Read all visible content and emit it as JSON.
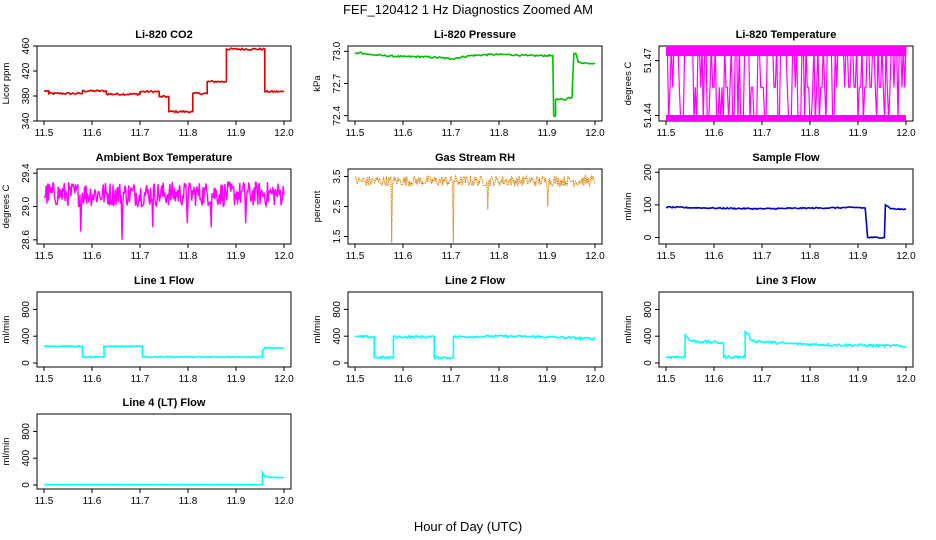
{
  "figure": {
    "title": "FEF_120412 1 Hz Diagnostics Zoomed AM",
    "xlabel": "Hour of Day (UTC)"
  },
  "chart_data": [
    {
      "type": "line",
      "title": "Li-820 CO2",
      "ylabel": "Licor ppm",
      "xlim": [
        11.5,
        12.0
      ],
      "ylim": [
        340,
        460
      ],
      "yticks": [
        340,
        380,
        420,
        460
      ],
      "xticks": [
        11.5,
        11.6,
        11.7,
        11.8,
        11.9,
        12.0
      ],
      "color": "#e00000",
      "noise": 1.6,
      "x": [
        11.5,
        11.51,
        11.51,
        11.58,
        11.58,
        11.63,
        11.63,
        11.7,
        11.7,
        11.74,
        11.74,
        11.76,
        11.76,
        11.81,
        11.81,
        11.84,
        11.84,
        11.88,
        11.88,
        11.96,
        11.96,
        12.0
      ],
      "y": [
        388,
        388,
        384,
        384,
        388,
        388,
        383,
        383,
        387,
        387,
        379,
        379,
        355,
        355,
        384,
        384,
        403,
        403,
        455,
        455,
        387,
        387
      ]
    },
    {
      "type": "line",
      "title": "Li-820 Pressure",
      "ylabel": "kPa",
      "xlim": [
        11.5,
        12.0
      ],
      "ylim": [
        72.35,
        73.05
      ],
      "yticks": [
        72.4,
        72.7,
        73.0
      ],
      "yticklabels": [
        "72.4",
        "72.7",
        "73.0"
      ],
      "extra_tick_labels": [
        "72.4",
        "72.7",
        "73.0"
      ],
      "xticks": [
        11.5,
        11.6,
        11.7,
        11.8,
        11.9,
        12.0
      ],
      "color": "#00c000",
      "noise": 0.008,
      "x": [
        11.5,
        11.51,
        11.53,
        11.56,
        11.6,
        11.64,
        11.68,
        11.7,
        11.74,
        11.78,
        11.82,
        11.86,
        11.9,
        11.912,
        11.914,
        11.918,
        11.918,
        11.94,
        11.945,
        11.952,
        11.956,
        11.96,
        11.965,
        11.98,
        12.0
      ],
      "y": [
        72.98,
        72.99,
        72.97,
        72.96,
        72.95,
        72.95,
        72.94,
        72.93,
        72.96,
        72.97,
        72.97,
        72.96,
        72.96,
        72.96,
        72.4,
        72.4,
        72.55,
        72.55,
        72.57,
        72.57,
        72.98,
        72.98,
        72.9,
        72.89,
        72.89
      ]
    },
    {
      "type": "line",
      "title": "Li-820 Temperature",
      "ylabel": "degrees C",
      "xlim": [
        11.5,
        12.0
      ],
      "ylim": [
        51.437,
        51.478
      ],
      "yticks": [
        51.44,
        51.47
      ],
      "yticklabels": [
        "51.44",
        "51.47"
      ],
      "extra_tick_labels": [
        "51.44",
        "51.47"
      ],
      "xticks": [
        11.5,
        11.6,
        11.7,
        11.8,
        11.9,
        12.0
      ],
      "color": "#ff00ff",
      "pattern": "bistable",
      "levels": [
        51.478,
        51.437
      ]
    },
    {
      "type": "line",
      "title": "Ambient Box Temperature",
      "ylabel": "degrees C",
      "xlim": [
        11.5,
        12.0
      ],
      "ylim": [
        28.55,
        29.45
      ],
      "yticks": [
        28.6,
        29.0,
        29.4
      ],
      "yticklabels": [
        "28.6",
        "29.0",
        "29.4"
      ],
      "extra_tick_labels": [
        "28.6",
        "29.0",
        "29.4"
      ],
      "xticks": [
        11.5,
        11.6,
        11.7,
        11.8,
        11.9,
        12.0
      ],
      "color": "#ff00ff",
      "pattern": "noise",
      "mean": 29.15,
      "band": 0.3,
      "spikes_down": [
        28.7,
        28.6,
        28.75,
        28.8,
        28.75,
        28.8
      ]
    },
    {
      "type": "line",
      "title": "Gas Stream RH",
      "ylabel": "percent",
      "xlim": [
        11.5,
        12.0
      ],
      "ylim": [
        1.25,
        3.75
      ],
      "yticks": [
        1.5,
        2.5,
        3.5
      ],
      "yticklabels": [
        "1.5",
        "2.5",
        "3.5"
      ],
      "extra_tick_labels": [
        "1.5",
        "2.5",
        "3.5"
      ],
      "xticks": [
        11.5,
        11.6,
        11.7,
        11.8,
        11.9,
        12.0
      ],
      "color": "#e08000",
      "pattern": "dotted-noise",
      "mean": 3.35,
      "band": 0.35,
      "spikes_down": [
        1.3,
        1.3,
        2.4,
        2.5
      ]
    },
    {
      "type": "line",
      "title": "Sample Flow",
      "ylabel": "ml/min",
      "xlim": [
        11.5,
        12.0
      ],
      "ylim": [
        -20,
        210
      ],
      "yticks": [
        0,
        100,
        200
      ],
      "xticks": [
        11.5,
        11.6,
        11.7,
        11.8,
        11.9,
        12.0
      ],
      "color": "#0000c0",
      "noise": 2,
      "x": [
        11.5,
        11.6,
        11.7,
        11.8,
        11.9,
        11.915,
        11.92,
        11.955,
        11.957,
        11.97,
        12.0
      ],
      "y": [
        93,
        90,
        88,
        90,
        92,
        90,
        0,
        0,
        100,
        88,
        86
      ]
    },
    {
      "type": "line",
      "title": "Line 1 Flow",
      "ylabel": "ml/min",
      "xlim": [
        11.5,
        12.0
      ],
      "ylim": [
        -60,
        1060
      ],
      "yticks": [
        0,
        400,
        800
      ],
      "extra_tick_labels": [
        "0",
        "400",
        "800"
      ],
      "xticks": [
        11.5,
        11.6,
        11.7,
        11.8,
        11.9,
        12.0
      ],
      "color": "#00ffff",
      "noise": 8,
      "x": [
        11.5,
        11.58,
        11.58,
        11.625,
        11.625,
        11.705,
        11.705,
        11.955,
        11.955,
        11.96,
        12.0
      ],
      "y": [
        250,
        250,
        90,
        90,
        250,
        250,
        90,
        90,
        190,
        230,
        220
      ]
    },
    {
      "type": "line",
      "title": "Line 2 Flow",
      "ylabel": "ml/min",
      "xlim": [
        11.5,
        12.0
      ],
      "ylim": [
        -60,
        1060
      ],
      "yticks": [
        0,
        400,
        800
      ],
      "extra_tick_labels": [
        "0",
        "400",
        "800"
      ],
      "xticks": [
        11.5,
        11.6,
        11.7,
        11.8,
        11.9,
        12.0
      ],
      "color": "#00ffff",
      "noise": 18,
      "x": [
        11.5,
        11.54,
        11.54,
        11.58,
        11.58,
        11.665,
        11.665,
        11.705,
        11.705,
        11.8,
        11.9,
        12.0
      ],
      "y": [
        390,
        390,
        80,
        80,
        390,
        390,
        80,
        80,
        390,
        400,
        390,
        360
      ]
    },
    {
      "type": "line",
      "title": "Line 3 Flow",
      "ylabel": "ml/min",
      "xlim": [
        11.5,
        12.0
      ],
      "ylim": [
        -60,
        1060
      ],
      "yticks": [
        0,
        400,
        800
      ],
      "extra_tick_labels": [
        "0",
        "400",
        "800"
      ],
      "xticks": [
        11.5,
        11.6,
        11.7,
        11.8,
        11.9,
        12.0
      ],
      "color": "#00ffff",
      "noise": 20,
      "x": [
        11.5,
        11.54,
        11.54,
        11.55,
        11.62,
        11.62,
        11.665,
        11.665,
        11.68,
        11.75,
        11.85,
        11.95,
        12.0
      ],
      "y": [
        90,
        90,
        420,
        330,
        300,
        90,
        90,
        480,
        330,
        290,
        270,
        260,
        250
      ]
    },
    {
      "type": "line",
      "title": "Line 4 (LT) Flow",
      "ylabel": "ml/min",
      "xlim": [
        11.5,
        12.0
      ],
      "ylim": [
        -60,
        1060
      ],
      "yticks": [
        0,
        400,
        800
      ],
      "extra_tick_labels": [
        "0",
        "400",
        "800"
      ],
      "xticks": [
        11.5,
        11.6,
        11.7,
        11.8,
        11.9,
        12.0
      ],
      "color": "#00ffff",
      "noise": 2,
      "x": [
        11.5,
        11.955,
        11.955,
        11.96,
        11.97,
        12.0
      ],
      "y": [
        5,
        5,
        190,
        130,
        115,
        110
      ]
    }
  ]
}
